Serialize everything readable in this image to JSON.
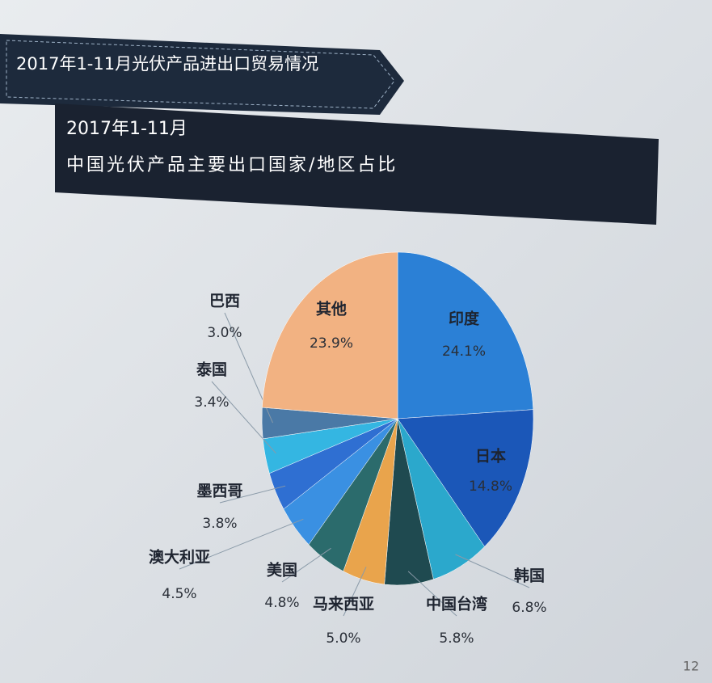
{
  "chart_data": {
    "type": "pie",
    "title": "2017年1-11月光伏产品进出口贸易情况",
    "subtitle": [
      "2017年1-11月",
      "中国光伏产品主要出口国家/地区占比"
    ],
    "categories": [
      "印度",
      "日本",
      "韩国",
      "中国台湾",
      "马来西亚",
      "美国",
      "澳大利亚",
      "墨西哥",
      "泰国",
      "巴西",
      "其他"
    ],
    "values": [
      24.1,
      14.8,
      6.8,
      5.8,
      5.0,
      4.8,
      4.5,
      3.8,
      3.4,
      3.0,
      23.9
    ],
    "value_labels": [
      "24.1%",
      "14.8%",
      "6.8%",
      "5.8%",
      "5.0%",
      "4.8%",
      "4.5%",
      "3.8%",
      "3.4%",
      "3.0%",
      "23.9%"
    ],
    "colors": [
      "#2b80d6",
      "#1b57b8",
      "#2ba8cc",
      "#1f4a50",
      "#e9a44c",
      "#2b6b6c",
      "#3a90e2",
      "#2f6fd2",
      "#34b6e2",
      "#4a79a6",
      "#f2b282"
    ],
    "page_number": "12"
  }
}
